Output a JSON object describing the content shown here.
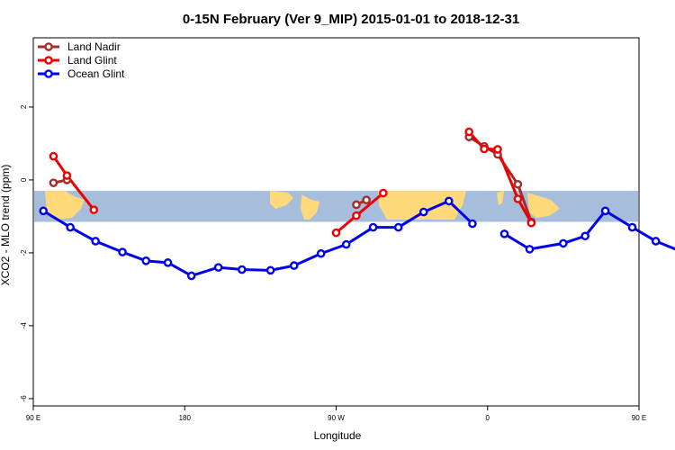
{
  "chart_data": {
    "type": "line",
    "title": "0-15N February (Ver 9_MIP)   2015-01-01 to 2018-12-31",
    "xlabel": "Longitude",
    "ylabel": "XCO2 - MLO trend (ppm)",
    "xlim": [
      90,
      450
    ],
    "ylim": [
      -6.2,
      3.9
    ],
    "x_ticks": [
      {
        "value": 90,
        "label": "90 E"
      },
      {
        "value": 180,
        "label": "180"
      },
      {
        "value": 270,
        "label": "90 W"
      },
      {
        "value": 360,
        "label": "0"
      },
      {
        "value": 450,
        "label": "90 E"
      },
      {
        "value": 540,
        "label": "180"
      }
    ],
    "y_ticks": [
      {
        "value": -6,
        "label": "-6"
      },
      {
        "value": -4,
        "label": "-4"
      },
      {
        "value": -2,
        "label": "-2"
      },
      {
        "value": 0,
        "label": "0"
      },
      {
        "value": 2,
        "label": "2"
      }
    ],
    "background_band": {
      "ymin": -1.15,
      "ymax": -0.3,
      "ocean_color": "#a6bddb",
      "land_color": "#ffd97a"
    },
    "legend_position": "top-left",
    "series": [
      {
        "name": "Land Nadir",
        "color": "#a52a2a",
        "segments": [
          [
            [
              102,
              -0.08
            ],
            [
              110,
              0.0
            ]
          ],
          [
            [
              282,
              -0.68
            ],
            [
              288,
              -0.55
            ]
          ],
          [
            [
              349,
              1.18
            ],
            [
              358,
              0.92
            ],
            [
              366,
              0.7
            ],
            [
              378,
              -0.12
            ],
            [
              386,
              -1.15
            ]
          ],
          [
            [
              475,
              -1.15
            ],
            [
              488,
              -0.08
            ],
            [
              494,
              0.0
            ]
          ]
        ]
      },
      {
        "name": "Land Glint",
        "color": "#ee0000",
        "segments": [
          [
            [
              102,
              0.65
            ],
            [
              110,
              0.12
            ],
            [
              126,
              -0.82
            ]
          ],
          [
            [
              270,
              -1.45
            ],
            [
              282,
              -0.98
            ],
            [
              298,
              -0.36
            ]
          ],
          [
            [
              349,
              1.32
            ],
            [
              358,
              0.85
            ],
            [
              366,
              0.84
            ],
            [
              378,
              -0.52
            ],
            [
              386,
              -1.18
            ]
          ],
          [
            [
              475,
              -1.6
            ],
            [
              488,
              0.65
            ],
            [
              494,
              0.12
            ],
            [
              506,
              -0.82
            ]
          ]
        ]
      },
      {
        "name": "Ocean Glint",
        "color": "#0000ee",
        "segments": [
          [
            [
              96,
              -0.85
            ],
            [
              112,
              -1.3
            ],
            [
              127,
              -1.68
            ],
            [
              143,
              -1.98
            ],
            [
              157,
              -2.22
            ],
            [
              170,
              -2.27
            ],
            [
              184,
              -2.63
            ],
            [
              200,
              -2.4
            ],
            [
              214,
              -2.46
            ],
            [
              231,
              -2.48
            ],
            [
              245,
              -2.35
            ],
            [
              261,
              -2.02
            ],
            [
              276,
              -1.77
            ],
            [
              292,
              -1.3
            ],
            [
              307,
              -1.3
            ],
            [
              322,
              -0.88
            ],
            [
              337,
              -0.58
            ],
            [
              351,
              -1.2
            ]
          ],
          [
            [
              370,
              -1.48
            ],
            [
              385,
              -1.9
            ],
            [
              405,
              -1.74
            ],
            [
              418,
              -1.54
            ],
            [
              430,
              -0.85
            ],
            [
              446,
              -1.3
            ],
            [
              460,
              -1.68
            ],
            [
              476,
              -1.98
            ],
            [
              490,
              -2.22
            ],
            [
              503,
              -2.27
            ]
          ]
        ]
      }
    ]
  }
}
